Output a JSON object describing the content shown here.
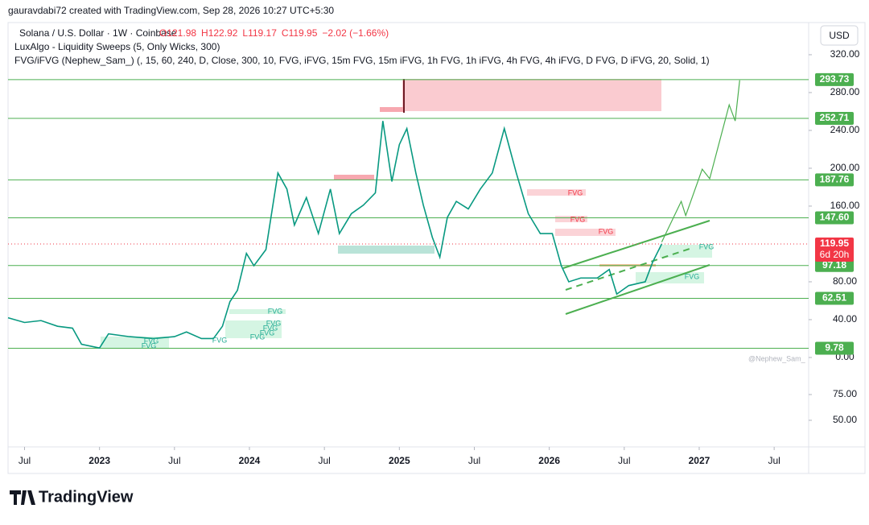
{
  "header": {
    "credit": "gauravdabi72 created with TradingView.com, Sep 28, 2026 10:27 UTC+5:30",
    "symbol": "Solana / U.S. Dollar · 1W · Coinbase",
    "ohlc": [
      "O121.98",
      "H122.92",
      "L119.17",
      "C119.95",
      "−2.02 (−1.66%)"
    ],
    "indicators": [
      "LuxAlgo - Liquidity Sweeps (5, Only Wicks, 300)",
      "FVG/iFVG (Nephew_Sam_) (, 15, 60, 240, D, Close, 300, 10, FVG, iFVG, 15m FVG, 15m iFVG, 1h FVG, 1h iFVG, 4h FVG, 4h iFVG, D FVG, D iFVG, 20, Solid, 1)"
    ],
    "currency": "USD"
  },
  "chart_data": {
    "type": "line",
    "color": "#089981",
    "x": [
      2022.39,
      2022.5,
      2022.61,
      2022.72,
      2022.82,
      2022.88,
      2023.0,
      2023.06,
      2023.2,
      2023.36,
      2023.5,
      2023.58,
      2023.68,
      2023.76,
      2023.82,
      2023.87,
      2023.92,
      2023.98,
      2024.03,
      2024.11,
      2024.19,
      2024.25,
      2024.3,
      2024.38,
      2024.46,
      2024.54,
      2024.6,
      2024.68,
      2024.76,
      2024.84,
      2024.89,
      2024.95,
      2025.0,
      2025.05,
      2025.11,
      2025.16,
      2025.22,
      2025.27,
      2025.32,
      2025.38,
      2025.46,
      2025.54,
      2025.62,
      2025.7,
      2025.78,
      2025.86,
      2025.94,
      2026.02,
      2026.08,
      2026.13,
      2026.21,
      2026.32,
      2026.4,
      2026.45,
      2026.53,
      2026.64,
      2026.69,
      2026.75
    ],
    "values": [
      42,
      37,
      39,
      33,
      31,
      14,
      10,
      25,
      22,
      20,
      22,
      27,
      20,
      20,
      33,
      59,
      71,
      110,
      97,
      114,
      195,
      178,
      140,
      169,
      131,
      178,
      131,
      152,
      161,
      174,
      250,
      186,
      225,
      242,
      195,
      161,
      127,
      106,
      148,
      165,
      157,
      178,
      195,
      242,
      195,
      152,
      131,
      131,
      97,
      80,
      84,
      84,
      93,
      67,
      76,
      80,
      101,
      120
    ],
    "projection": {
      "color": "#4caf50",
      "x": [
        2026.75,
        2026.88,
        2026.91,
        2027.02,
        2027.07,
        2027.2,
        2027.24,
        2027.27
      ],
      "values": [
        122,
        165,
        150,
        199,
        189,
        267,
        250,
        293
      ]
    },
    "xlim": [
      2022.39,
      2027.73
    ],
    "xticks": [
      {
        "value": 2022.5,
        "label": "Jul"
      },
      2023,
      {
        "value": 2023.5,
        "label": "Jul"
      },
      2024,
      {
        "value": 2024.5,
        "label": "Jul"
      },
      2025,
      {
        "value": 2025.5,
        "label": "Jul"
      },
      2026,
      {
        "value": 2026.5,
        "label": "Jul"
      },
      2027,
      {
        "value": 2027.5,
        "label": "Jul"
      }
    ],
    "ylim": [
      -94.5,
      354
    ],
    "yticks": [
      {
        "value": 320,
        "label": "320.00"
      },
      {
        "value": 280,
        "label": "280.00"
      },
      {
        "value": 240,
        "label": "240.00"
      },
      {
        "value": 200,
        "label": "200.00"
      },
      {
        "value": 160,
        "label": "160.00"
      },
      {
        "value": 80,
        "label": "80.00"
      },
      {
        "value": 40,
        "label": "40.00"
      },
      {
        "value": 0,
        "label": "0.00"
      }
    ],
    "y2lim": [
      24.2,
      435.9
    ],
    "y2ticks": [
      {
        "value": 75,
        "label": "75.00"
      },
      {
        "value": 50,
        "label": "50.00"
      }
    ],
    "levels": [
      {
        "value": 293.73,
        "label": "293.73"
      },
      {
        "value": 252.71,
        "label": "252.71"
      },
      {
        "value": 187.76,
        "label": "187.76"
      },
      {
        "value": 147.6,
        "label": "147.60"
      },
      {
        "value": 97.18,
        "label": "97.18"
      },
      {
        "value": 62.51,
        "label": "62.51"
      },
      {
        "value": 9.78,
        "label": "9.78"
      }
    ],
    "level_color": "#4caf50",
    "last_price": {
      "value": 119.95,
      "label": "119.95",
      "countdown": "6d 20h",
      "color": "#f23645"
    },
    "fvg_labels": [
      "FVG",
      "FVG",
      "FVG",
      "FVG",
      "FVG",
      "FVG",
      "FVG",
      "FVG",
      "FVG",
      "FVG",
      "FVG",
      "FVG",
      "FVG"
    ],
    "watermark": "@Nephew_Sam_"
  },
  "footer": {
    "brand": "TradingView"
  }
}
